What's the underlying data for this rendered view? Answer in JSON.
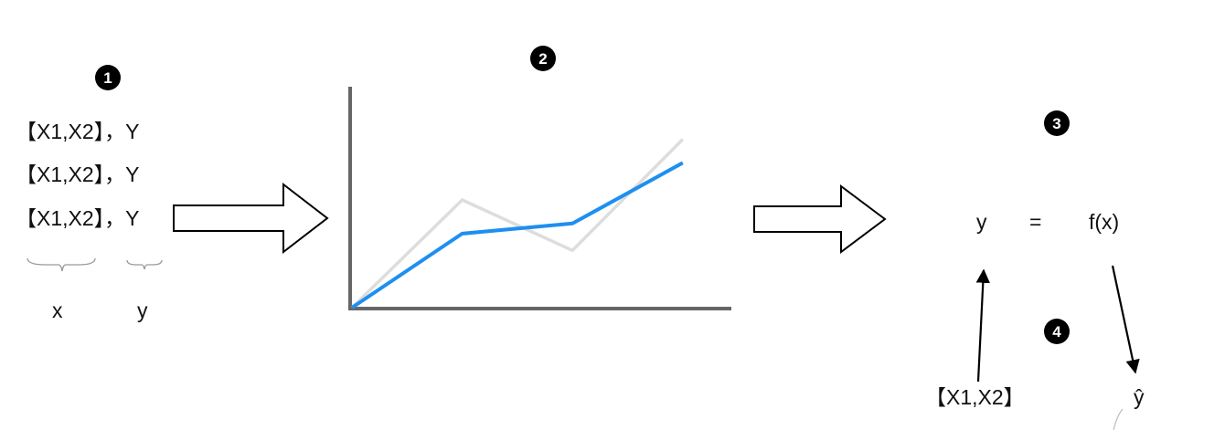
{
  "steps": [
    "1",
    "2",
    "3",
    "4"
  ],
  "dataset": {
    "rows": [
      "【X1,X2】，Y",
      "【X1,X2】，Y",
      "【X1,X2】，Y"
    ],
    "x_label": "x",
    "y_label": "y"
  },
  "chart_data": {
    "type": "line",
    "x": [
      0,
      1,
      2,
      3
    ],
    "series": [
      {
        "values": [
          0,
          3.2,
          1.7,
          5.0
        ],
        "color": "#dddddd"
      },
      {
        "values": [
          0,
          2.2,
          2.5,
          4.3
        ],
        "color": "#1e8ff0"
      }
    ],
    "xlim": [
      0,
      3.4
    ],
    "ylim": [
      0,
      6.1
    ],
    "grid": false,
    "xlabel": "",
    "ylabel": ""
  },
  "equation": {
    "lhs": "y",
    "eq": "=",
    "rhs": "f(x)"
  },
  "prediction": {
    "input": "【X1,X2】",
    "output": "ŷ"
  },
  "colors": {
    "axis": "#666666",
    "fit_line": "#1e8ff0",
    "truth_line": "#dddddd",
    "arrow": "#000000"
  }
}
